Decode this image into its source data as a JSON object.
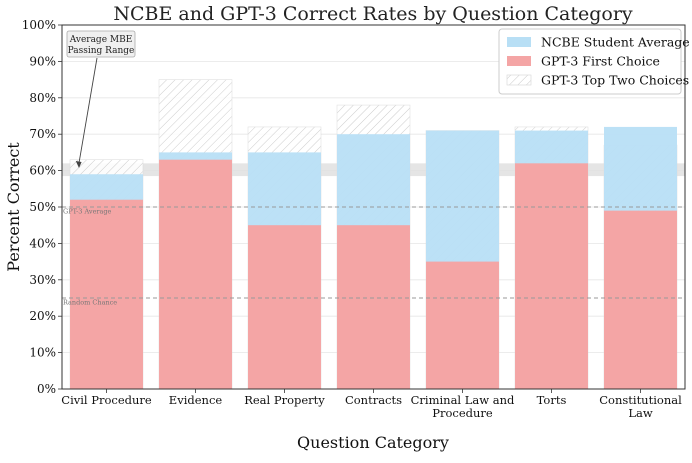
{
  "chart_data": {
    "type": "bar",
    "title": "NCBE and GPT-3 Correct Rates by Question Category",
    "xlabel": "Question Category",
    "ylabel": "Percent Correct",
    "ylim": [
      0,
      100
    ],
    "yticks": [
      0,
      10,
      20,
      30,
      40,
      50,
      60,
      70,
      80,
      90,
      100
    ],
    "ytick_suffix": "%",
    "grid": true,
    "categories": [
      [
        "Civil Procedure"
      ],
      [
        "Evidence"
      ],
      [
        "Real Property"
      ],
      [
        "Contracts"
      ],
      [
        "Criminal Law and",
        "Procedure"
      ],
      [
        "Torts"
      ],
      [
        "Constitutional",
        "Law"
      ]
    ],
    "series": [
      {
        "name": "NCBE Student Average",
        "color": "#b8dff5",
        "values": [
          59,
          65,
          65,
          70,
          71,
          71,
          72
        ]
      },
      {
        "name": "GPT-3 First Choice",
        "color": "#f4a5a5",
        "values": [
          52,
          63,
          45,
          45,
          35,
          62,
          49
        ]
      },
      {
        "name": "GPT-3 Top Two Choices",
        "color": "#e4e4e4",
        "hatch": true,
        "values": [
          63,
          85,
          72,
          78,
          71,
          72,
          67
        ]
      }
    ],
    "legend_position": "top-right",
    "reference_lines": [
      {
        "label": "GPT-3 Average",
        "value": 50
      },
      {
        "label": "Random Chance",
        "value": 25
      }
    ],
    "passing_band": {
      "range": [
        58.5,
        62
      ],
      "color": "#e0e0e0"
    },
    "annotation": {
      "lines": [
        "Average MBE",
        "Passing Range"
      ],
      "target_value": 61
    }
  }
}
